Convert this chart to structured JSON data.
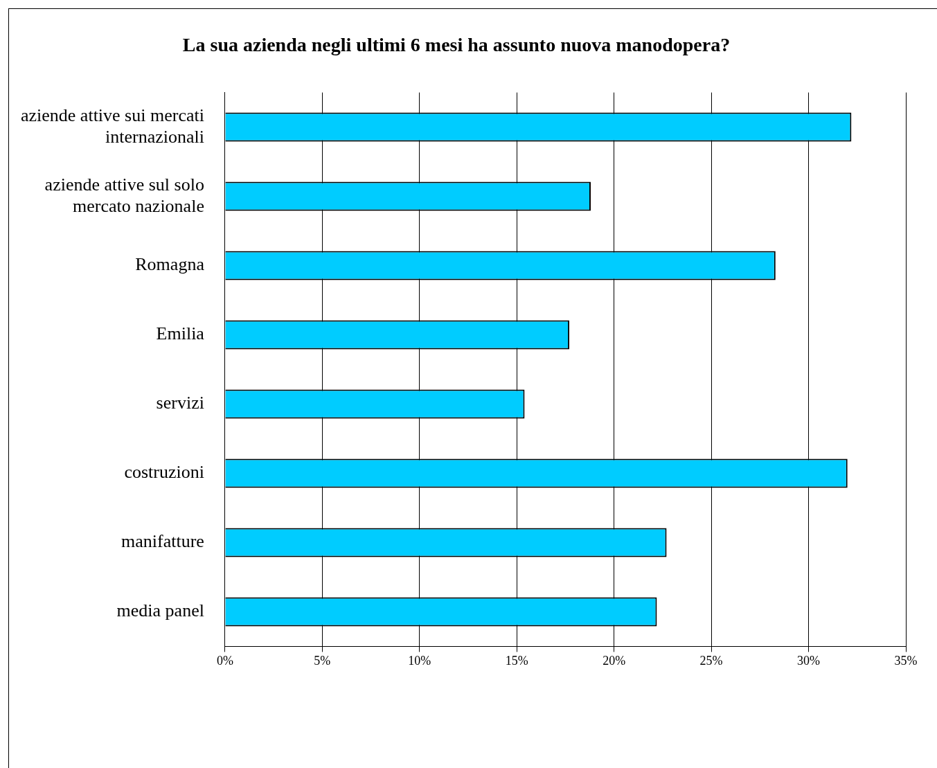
{
  "chart_data": {
    "type": "bar",
    "orientation": "horizontal",
    "title": "La sua azienda negli ultimi 6 mesi ha assunto nuova manodopera?",
    "categories": [
      "aziende attive sui mercati internazionali",
      "aziende attive sul solo mercato nazionale",
      "Romagna",
      "Emilia",
      "servizi",
      "costruzioni",
      "manifatture",
      "media panel"
    ],
    "values": [
      32.2,
      18.8,
      28.3,
      17.7,
      15.4,
      32.0,
      22.7,
      22.2
    ],
    "color": "#00ccff",
    "xlim": [
      0,
      35
    ],
    "xticks": [
      {
        "value": 0,
        "label": "0%"
      },
      {
        "value": 5,
        "label": "5%"
      },
      {
        "value": 10,
        "label": "10%"
      },
      {
        "value": 15,
        "label": "15%"
      },
      {
        "value": 20,
        "label": "20%"
      },
      {
        "value": 25,
        "label": "25%"
      },
      {
        "value": 30,
        "label": "30%"
      },
      {
        "value": 35,
        "label": "35%"
      }
    ],
    "grid": "x",
    "legend": false
  }
}
